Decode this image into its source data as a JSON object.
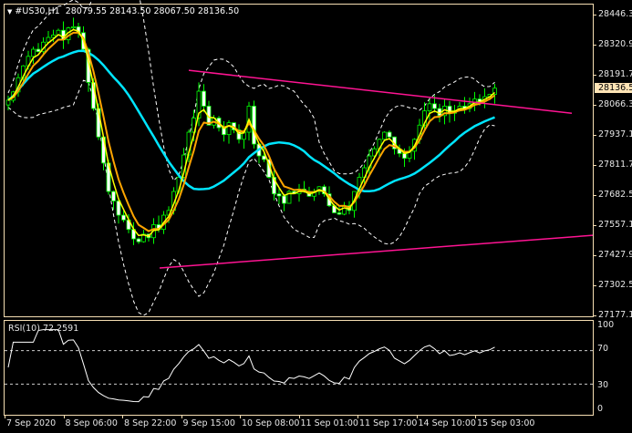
{
  "header": {
    "symbol": "#US30,H1",
    "open": "28079.55",
    "high": "28143.50",
    "low": "28067.50",
    "close": "28136.50"
  },
  "current_price": "28136.50",
  "rsi": {
    "label": "RSI(10) 72.2591",
    "levels": [
      "100",
      "70",
      "30",
      "0"
    ]
  },
  "colors": {
    "bull": "#00ff00",
    "bear": "#ffffff",
    "fast_ma": "#ffff00",
    "mid_ma": "#ffa500",
    "slow_ma": "#00e5ff",
    "bands": "#ffffff",
    "trendline": "#ff1493",
    "grid": "#f5deb3"
  },
  "chart_data": {
    "type": "candlestick",
    "title": "#US30,H1",
    "y_ticks": [
      "28446.30",
      "28320.90",
      "28191.70",
      "28066.30",
      "27937.10",
      "27811.70",
      "27682.50",
      "27557.10",
      "27427.90",
      "27302.50",
      "27177.10"
    ],
    "ylim": [
      27177.1,
      28446.3
    ],
    "x_ticks": [
      "7 Sep 2020",
      "8 Sep 06:00",
      "8 Sep 22:00",
      "9 Sep 15:00",
      "10 Sep 08:00",
      "11 Sep 01:00",
      "11 Sep 17:00",
      "14 Sep 10:00",
      "15 Sep 03:00"
    ],
    "close": [
      28085,
      28120,
      28180,
      28230,
      28270,
      28300,
      28290,
      28330,
      28350,
      28360,
      28380,
      28340,
      28390,
      28395,
      28370,
      28300,
      28160,
      28050,
      27930,
      27820,
      27700,
      27660,
      27600,
      27580,
      27540,
      27500,
      27488,
      27520,
      27505,
      27560,
      27540,
      27600,
      27620,
      27700,
      27760,
      27854,
      27950,
      28010,
      28123,
      28060,
      27980,
      28010,
      27969,
      27940,
      27990,
      27960,
      27920,
      27950,
      28060,
      27900,
      27850,
      27835,
      27760,
      27690,
      27681,
      27650,
      27700,
      27690,
      27710,
      27700,
      27680,
      27700,
      27720,
      27690,
      27640,
      27610,
      27604,
      27640,
      27620,
      27700,
      27760,
      27800,
      27850,
      27880,
      27920,
      27950,
      27930,
      27880,
      27860,
      27840,
      27870,
      27920,
      27980,
      28040,
      28070,
      28050,
      28020,
      28060,
      28030,
      28040,
      28060,
      28050,
      28070,
      28090,
      28080,
      28100,
      28110,
      28136
    ],
    "trendlines": [
      {
        "name": "upper",
        "from": 28211,
        "to": 28030
      },
      {
        "name": "lower",
        "from": 27377,
        "to": 27515
      }
    ],
    "rsi_period": 10,
    "rsi_levels": [
      70,
      30
    ]
  }
}
